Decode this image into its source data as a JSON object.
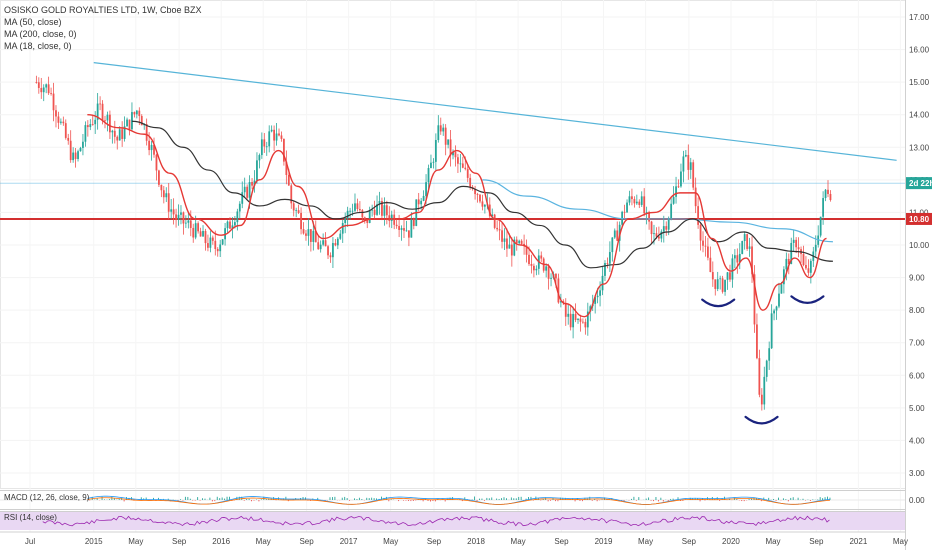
{
  "legend": {
    "title": "OSISKO GOLD ROYALTIES LTD, 1W, Cboe BZX",
    "ma1": "MA (50, close)",
    "ma2": "MA (200, close, 0)",
    "ma3": "MA (18, close, 0)"
  },
  "macd_label": "MACD (12, 26, close, 9)",
  "rsi_label": "RSI (14, close)",
  "colors": {
    "up": "#26a69a",
    "down": "#ef5350",
    "ma_short": "#e53935",
    "ma_long": "#333333",
    "ma_mid": "#5ab4e0",
    "trendline": "#56b4d8",
    "support": "#d32f2f",
    "arc": "#1a237e",
    "price_tag": "#26a69a",
    "support_tag": "#d32f2f",
    "rsi_bg": "#e9d8f3",
    "rsi_line": "#9c27b0"
  },
  "chart_data": {
    "type": "candlestick",
    "interval": "1W",
    "symbol": "OSISKO GOLD ROYALTIES LTD",
    "exchange": "Cboe BZX",
    "y_ticks": [
      "3.00",
      "4.00",
      "5.00",
      "6.00",
      "7.00",
      "8.00",
      "9.00",
      "10.00",
      "11.00",
      "12.00",
      "13.00",
      "14.00",
      "15.00",
      "16.00",
      "17.00"
    ],
    "ylim": [
      2.5,
      17.5
    ],
    "x_ticks": [
      "Jul",
      "2015",
      "May",
      "Sep",
      "2016",
      "May",
      "Sep",
      "2017",
      "May",
      "Sep",
      "2018",
      "May",
      "Sep",
      "2019",
      "May",
      "Sep",
      "2020",
      "May",
      "Sep",
      "2021",
      "May"
    ],
    "price_labels": [
      {
        "price": 11.9,
        "text": "2d 22h"
      },
      {
        "price": 10.8,
        "text": "10.80"
      }
    ],
    "support_level": 10.8,
    "trendline": [
      [
        2015.0,
        15.6
      ],
      [
        2021.3,
        12.6
      ]
    ],
    "close_path": [
      [
        2014.55,
        15.0
      ],
      [
        2014.65,
        14.8
      ],
      [
        2014.75,
        13.6
      ],
      [
        2014.85,
        12.5
      ],
      [
        2014.95,
        13.6
      ],
      [
        2015.05,
        14.2
      ],
      [
        2015.12,
        13.8
      ],
      [
        2015.18,
        13.2
      ],
      [
        2015.25,
        13.6
      ],
      [
        2015.35,
        14.2
      ],
      [
        2015.45,
        13.0
      ],
      [
        2015.55,
        11.5
      ],
      [
        2015.65,
        10.8
      ],
      [
        2015.75,
        10.6
      ],
      [
        2015.85,
        10.2
      ],
      [
        2015.95,
        9.9
      ],
      [
        2016.05,
        10.5
      ],
      [
        2016.15,
        11.3
      ],
      [
        2016.25,
        12.0
      ],
      [
        2016.32,
        13.0
      ],
      [
        2016.4,
        13.5
      ],
      [
        2016.48,
        13.0
      ],
      [
        2016.55,
        11.3
      ],
      [
        2016.65,
        10.6
      ],
      [
        2016.75,
        10.0
      ],
      [
        2016.85,
        9.8
      ],
      [
        2016.95,
        10.7
      ],
      [
        2017.05,
        11.3
      ],
      [
        2017.12,
        10.6
      ],
      [
        2017.2,
        11.2
      ],
      [
        2017.28,
        11.0
      ],
      [
        2017.38,
        10.8
      ],
      [
        2017.48,
        10.4
      ],
      [
        2017.55,
        11.4
      ],
      [
        2017.62,
        12.0
      ],
      [
        2017.68,
        13.0
      ],
      [
        2017.72,
        13.7
      ],
      [
        2017.78,
        13.0
      ],
      [
        2017.85,
        12.5
      ],
      [
        2017.95,
        12.0
      ],
      [
        2018.05,
        11.4
      ],
      [
        2018.15,
        10.5
      ],
      [
        2018.25,
        9.9
      ],
      [
        2018.35,
        9.9
      ],
      [
        2018.45,
        9.5
      ],
      [
        2018.55,
        9.4
      ],
      [
        2018.62,
        8.8
      ],
      [
        2018.7,
        7.8
      ],
      [
        2018.78,
        7.6
      ],
      [
        2018.85,
        7.6
      ],
      [
        2018.95,
        8.5
      ],
      [
        2019.02,
        9.5
      ],
      [
        2019.1,
        10.3
      ],
      [
        2019.18,
        11.3
      ],
      [
        2019.28,
        11.5
      ],
      [
        2019.38,
        10.2
      ],
      [
        2019.48,
        10.6
      ],
      [
        2019.55,
        11.4
      ],
      [
        2019.62,
        12.6
      ],
      [
        2019.68,
        12.5
      ],
      [
        2019.72,
        11.3
      ],
      [
        2019.78,
        10.0
      ],
      [
        2019.85,
        9.0
      ],
      [
        2019.92,
        8.7
      ],
      [
        2019.98,
        9.1
      ],
      [
        2020.05,
        9.6
      ],
      [
        2020.12,
        10.2
      ],
      [
        2020.16,
        9.6
      ],
      [
        2020.2,
        6.5
      ],
      [
        2020.23,
        4.9
      ],
      [
        2020.27,
        6.2
      ],
      [
        2020.32,
        7.7
      ],
      [
        2020.38,
        8.7
      ],
      [
        2020.45,
        9.6
      ],
      [
        2020.52,
        10.2
      ],
      [
        2020.58,
        9.1
      ],
      [
        2020.63,
        9.3
      ],
      [
        2020.68,
        10.4
      ],
      [
        2020.72,
        11.2
      ],
      [
        2020.75,
        11.8
      ],
      [
        2020.79,
        11.6
      ]
    ],
    "ma_short_path": [
      [
        2014.95,
        14.0
      ],
      [
        2015.2,
        13.6
      ],
      [
        2015.4,
        13.4
      ],
      [
        2015.6,
        12.2
      ],
      [
        2015.8,
        10.8
      ],
      [
        2016.0,
        10.3
      ],
      [
        2016.15,
        10.6
      ],
      [
        2016.3,
        12.0
      ],
      [
        2016.45,
        12.9
      ],
      [
        2016.6,
        11.8
      ],
      [
        2016.8,
        10.2
      ],
      [
        2017.0,
        10.6
      ],
      [
        2017.2,
        10.8
      ],
      [
        2017.4,
        10.8
      ],
      [
        2017.55,
        11.0
      ],
      [
        2017.7,
        12.3
      ],
      [
        2017.85,
        12.9
      ],
      [
        2018.0,
        12.2
      ],
      [
        2018.15,
        10.8
      ],
      [
        2018.35,
        10.0
      ],
      [
        2018.55,
        9.4
      ],
      [
        2018.7,
        8.2
      ],
      [
        2018.85,
        7.8
      ],
      [
        2019.0,
        8.8
      ],
      [
        2019.2,
        10.8
      ],
      [
        2019.4,
        11.0
      ],
      [
        2019.6,
        11.6
      ],
      [
        2019.72,
        11.6
      ],
      [
        2019.85,
        10.2
      ],
      [
        2020.0,
        9.2
      ],
      [
        2020.12,
        9.6
      ],
      [
        2020.25,
        8.0
      ],
      [
        2020.38,
        8.8
      ],
      [
        2020.5,
        9.6
      ],
      [
        2020.62,
        9.0
      ],
      [
        2020.75,
        10.2
      ]
    ],
    "ma_long_path": [
      [
        2015.3,
        13.8
      ],
      [
        2015.5,
        13.6
      ],
      [
        2015.7,
        13.0
      ],
      [
        2015.9,
        12.3
      ],
      [
        2016.1,
        11.6
      ],
      [
        2016.3,
        11.2
      ],
      [
        2016.5,
        11.4
      ],
      [
        2016.7,
        11.2
      ],
      [
        2016.9,
        10.8
      ],
      [
        2017.1,
        11.0
      ],
      [
        2017.3,
        11.3
      ],
      [
        2017.5,
        11.1
      ],
      [
        2017.7,
        11.3
      ],
      [
        2017.9,
        11.8
      ],
      [
        2018.1,
        11.6
      ],
      [
        2018.3,
        11.0
      ],
      [
        2018.5,
        10.6
      ],
      [
        2018.7,
        10.0
      ],
      [
        2018.9,
        9.3
      ],
      [
        2019.1,
        9.4
      ],
      [
        2019.3,
        9.9
      ],
      [
        2019.5,
        10.4
      ],
      [
        2019.7,
        10.8
      ],
      [
        2019.9,
        10.1
      ],
      [
        2020.1,
        10.4
      ],
      [
        2020.3,
        9.9
      ],
      [
        2020.5,
        9.8
      ],
      [
        2020.8,
        9.5
      ]
    ],
    "ma_mid_path": [
      [
        2018.05,
        12.0
      ],
      [
        2018.4,
        11.5
      ],
      [
        2018.8,
        11.1
      ],
      [
        2019.2,
        10.8
      ],
      [
        2019.6,
        10.8
      ],
      [
        2020.0,
        10.7
      ],
      [
        2020.4,
        10.5
      ],
      [
        2020.8,
        10.1
      ]
    ],
    "annotations": [
      {
        "type": "arc",
        "x": 2019.9,
        "y": 8.2
      },
      {
        "type": "arc",
        "x": 2020.24,
        "y": 4.6
      },
      {
        "type": "arc",
        "x": 2020.6,
        "y": 8.3
      }
    ]
  }
}
